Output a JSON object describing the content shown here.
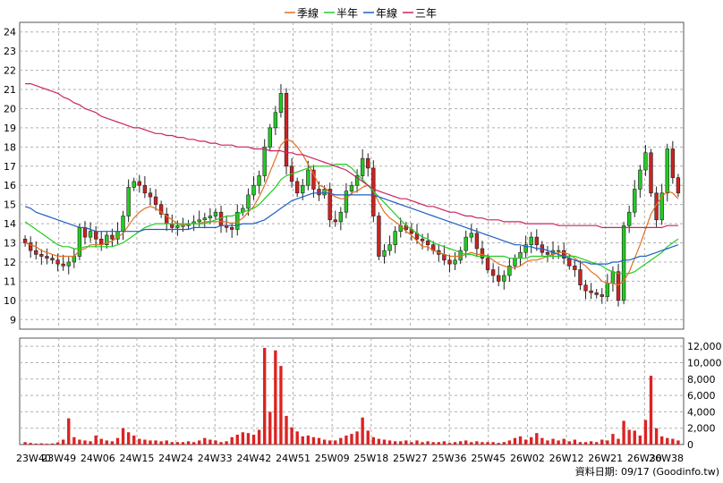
{
  "legend": [
    {
      "label": "季線",
      "color": "#e07020"
    },
    {
      "label": "半年",
      "color": "#22cc22"
    },
    {
      "label": "年線",
      "color": "#1f5fc8"
    },
    {
      "label": "三年",
      "color": "#cc2266"
    }
  ],
  "source_note": "資料日期: 09/17  (Goodinfo.tw)",
  "chart_data": {
    "type": "candlestick",
    "title": "",
    "x_ticks": [
      "23W40",
      "23W49",
      "24W06",
      "24W15",
      "24W24",
      "24W33",
      "24W42",
      "24W51",
      "25W09",
      "25W18",
      "25W27",
      "25W36",
      "25W45",
      "26W02",
      "26W12",
      "26W21",
      "26W30",
      "26W38"
    ],
    "price_axis": {
      "ylim": [
        8.5,
        24.5
      ],
      "ticks": [
        9,
        10,
        11,
        12,
        13,
        14,
        15,
        16,
        17,
        18,
        19,
        20,
        21,
        22,
        23,
        24
      ]
    },
    "volume_axis": {
      "ylim": [
        0,
        13000
      ],
      "ticks": [
        0,
        2000,
        4000,
        6000,
        8000,
        10000,
        12000
      ],
      "tick_labels": [
        "0",
        "2,000",
        "4,000",
        "6,000",
        "8,000",
        "10,000",
        "12,000"
      ]
    },
    "grid": true,
    "legend_position": "top-center",
    "up_color": "#22cc22",
    "down_color": "#cc2222",
    "close": [
      13.0,
      12.6,
      12.4,
      12.3,
      12.2,
      12.1,
      11.9,
      11.8,
      12.0,
      12.3,
      13.8,
      13.3,
      13.6,
      13.2,
      12.9,
      13.4,
      13.2,
      13.6,
      14.4,
      15.9,
      16.2,
      16.0,
      15.6,
      15.4,
      15.0,
      14.5,
      14.0,
      13.8,
      13.9,
      13.9,
      14.0,
      14.1,
      14.2,
      14.3,
      14.4,
      14.6,
      13.9,
      13.8,
      13.7,
      14.6,
      14.8,
      15.5,
      16.0,
      16.5,
      18.0,
      19.0,
      19.8,
      20.8,
      17.0,
      16.2,
      15.6,
      16.0,
      16.8,
      15.8,
      15.5,
      15.8,
      14.2,
      14.1,
      14.6,
      15.7,
      16.0,
      16.5,
      17.4,
      16.9,
      14.4,
      12.3,
      12.6,
      12.9,
      13.6,
      13.9,
      13.7,
      13.5,
      13.2,
      13.1,
      12.9,
      12.6,
      12.4,
      12.1,
      11.9,
      12.1,
      12.6,
      13.3,
      13.5,
      12.7,
      12.2,
      11.6,
      11.3,
      11.0,
      11.3,
      11.8,
      12.2,
      12.5,
      12.9,
      13.3,
      12.9,
      12.5,
      12.4,
      12.6,
      12.6,
      12.2,
      11.8,
      11.6,
      10.8,
      10.5,
      10.4,
      10.3,
      10.2,
      10.9,
      11.5,
      10.0,
      13.9,
      14.6,
      15.8,
      16.8,
      17.7,
      15.6,
      14.2,
      15.6,
      17.9,
      16.4,
      15.6
    ],
    "volume": [
      300,
      200,
      120,
      150,
      100,
      130,
      250,
      600,
      3200,
      900,
      600,
      500,
      400,
      1100,
      700,
      500,
      400,
      800,
      2000,
      1500,
      1100,
      700,
      600,
      500,
      500,
      400,
      500,
      300,
      300,
      300,
      400,
      300,
      500,
      800,
      600,
      500,
      300,
      400,
      900,
      1200,
      1500,
      1400,
      1200,
      1800,
      11800,
      4000,
      11500,
      9600,
      3500,
      2100,
      1600,
      1000,
      1100,
      900,
      800,
      600,
      500,
      500,
      800,
      1100,
      1300,
      1600,
      3300,
      1700,
      900,
      700,
      600,
      500,
      400,
      400,
      500,
      300,
      500,
      300,
      400,
      300,
      300,
      400,
      200,
      300,
      400,
      500,
      300,
      400,
      300,
      300,
      300,
      200,
      300,
      500,
      800,
      1000,
      600,
      900,
      1400,
      800,
      500,
      700,
      500,
      700,
      400,
      600,
      300,
      300,
      400,
      300,
      600,
      500,
      1300,
      700,
      2900,
      1800,
      1700,
      1100,
      3000,
      8400,
      2000,
      1000,
      800,
      700,
      500
    ],
    "series": [
      {
        "name": "季線",
        "values": [
          13.0,
          12.9,
          12.8,
          12.6,
          12.5,
          12.4,
          12.3,
          12.3,
          12.3,
          12.3,
          12.6,
          12.7,
          12.9,
          12.9,
          12.9,
          13.0,
          13.1,
          13.3,
          13.5,
          13.9,
          14.3,
          14.6,
          14.8,
          14.9,
          14.8,
          14.6,
          14.4,
          14.2,
          14.0,
          13.9,
          14.0,
          14.0,
          14.0,
          14.1,
          14.1,
          14.1,
          14.1,
          14.1,
          14.0,
          14.1,
          14.3,
          14.6,
          14.9,
          15.4,
          16.0,
          16.7,
          17.4,
          18.1,
          18.4,
          18.3,
          18.0,
          17.6,
          17.1,
          16.6,
          16.0,
          15.9,
          15.6,
          15.4,
          15.3,
          15.3,
          15.6,
          15.7,
          15.9,
          16.0,
          15.7,
          15.1,
          14.6,
          14.3,
          14.1,
          13.9,
          13.6,
          13.4,
          13.1,
          12.8,
          12.8,
          12.6,
          12.5,
          12.4,
          12.3,
          12.3,
          12.3,
          12.4,
          12.5,
          12.4,
          12.4,
          12.3,
          12.1,
          11.9,
          11.8,
          11.7,
          11.7,
          11.8,
          12.0,
          12.1,
          12.1,
          12.2,
          12.3,
          12.4,
          12.5,
          12.5,
          12.4,
          12.2,
          12.0,
          11.8,
          11.5,
          11.3,
          11.0,
          10.9,
          10.9,
          10.8,
          11.0,
          11.5,
          12.2,
          12.9,
          13.7,
          14.5,
          15.0,
          15.4,
          15.7,
          15.6,
          15.3
        ]
      },
      {
        "name": "半年",
        "values": [
          14.1,
          13.9,
          13.7,
          13.5,
          13.3,
          13.1,
          12.9,
          12.8,
          12.8,
          12.7,
          12.7,
          12.8,
          12.8,
          12.8,
          12.8,
          12.8,
          12.8,
          12.9,
          13.0,
          13.2,
          13.4,
          13.6,
          13.8,
          13.9,
          14.0,
          14.0,
          14.0,
          14.0,
          14.0,
          14.0,
          14.0,
          14.0,
          14.0,
          14.0,
          14.1,
          14.2,
          14.3,
          14.4,
          14.4,
          14.5,
          14.6,
          14.7,
          14.8,
          15.0,
          15.3,
          15.6,
          15.9,
          16.3,
          16.5,
          16.6,
          16.7,
          16.8,
          16.9,
          17.0,
          17.0,
          17.0,
          17.0,
          17.1,
          17.1,
          17.1,
          16.9,
          16.6,
          16.3,
          16.0,
          15.7,
          15.4,
          15.1,
          14.8,
          14.5,
          14.2,
          13.9,
          13.7,
          13.5,
          13.3,
          13.2,
          13.0,
          12.9,
          12.8,
          12.7,
          12.6,
          12.5,
          12.4,
          12.4,
          12.3,
          12.3,
          12.3,
          12.3,
          12.3,
          12.3,
          12.2,
          12.2,
          12.2,
          12.2,
          12.3,
          12.3,
          12.3,
          12.3,
          12.3,
          12.3,
          12.3,
          12.3,
          12.3,
          12.2,
          12.1,
          12.0,
          11.9,
          11.8,
          11.6,
          11.5,
          11.4,
          11.4,
          11.4,
          11.5,
          11.7,
          11.9,
          12.1,
          12.3,
          12.5,
          12.8,
          13.0,
          13.2
        ]
      },
      {
        "name": "年線",
        "values": [
          14.9,
          14.8,
          14.6,
          14.5,
          14.4,
          14.3,
          14.2,
          14.1,
          14.0,
          13.9,
          13.8,
          13.8,
          13.7,
          13.6,
          13.6,
          13.6,
          13.6,
          13.6,
          13.6,
          13.6,
          13.6,
          13.6,
          13.7,
          13.7,
          13.7,
          13.7,
          13.7,
          13.7,
          13.7,
          13.7,
          13.7,
          13.8,
          13.8,
          13.8,
          13.8,
          13.8,
          13.9,
          13.9,
          13.9,
          13.9,
          14.0,
          14.0,
          14.0,
          14.1,
          14.2,
          14.4,
          14.6,
          14.8,
          15.0,
          15.2,
          15.3,
          15.4,
          15.5,
          15.6,
          15.6,
          15.6,
          15.6,
          15.5,
          15.5,
          15.5,
          15.5,
          15.5,
          15.5,
          15.5,
          15.5,
          15.4,
          15.3,
          15.2,
          15.1,
          15.0,
          14.9,
          14.8,
          14.7,
          14.6,
          14.5,
          14.4,
          14.3,
          14.2,
          14.1,
          14.0,
          13.9,
          13.8,
          13.7,
          13.6,
          13.5,
          13.4,
          13.3,
          13.2,
          13.1,
          13.0,
          12.9,
          12.9,
          12.8,
          12.8,
          12.7,
          12.7,
          12.6,
          12.5,
          12.4,
          12.3,
          12.2,
          12.1,
          12.0,
          12.0,
          11.9,
          11.9,
          11.9,
          11.9,
          12.0,
          12.0,
          12.1,
          12.1,
          12.2,
          12.3,
          12.3,
          12.4,
          12.5,
          12.6,
          12.7,
          12.8,
          12.9
        ]
      },
      {
        "name": "三年",
        "values": [
          21.3,
          21.3,
          21.2,
          21.1,
          21.0,
          20.9,
          20.8,
          20.6,
          20.5,
          20.3,
          20.2,
          20.0,
          19.9,
          19.8,
          19.6,
          19.5,
          19.4,
          19.3,
          19.2,
          19.1,
          19.0,
          19.0,
          18.9,
          18.8,
          18.7,
          18.7,
          18.6,
          18.6,
          18.5,
          18.5,
          18.4,
          18.4,
          18.3,
          18.3,
          18.2,
          18.2,
          18.1,
          18.1,
          18.1,
          18.0,
          18.0,
          18.0,
          17.9,
          17.9,
          17.9,
          17.8,
          17.8,
          17.8,
          17.7,
          17.7,
          17.6,
          17.6,
          17.5,
          17.4,
          17.3,
          17.2,
          17.1,
          17.0,
          16.9,
          16.8,
          16.6,
          16.4,
          16.2,
          16.0,
          15.8,
          15.7,
          15.6,
          15.5,
          15.4,
          15.3,
          15.3,
          15.2,
          15.1,
          15.0,
          14.9,
          14.9,
          14.8,
          14.7,
          14.6,
          14.6,
          14.5,
          14.4,
          14.4,
          14.3,
          14.3,
          14.2,
          14.2,
          14.2,
          14.1,
          14.1,
          14.1,
          14.1,
          14.0,
          14.0,
          14.0,
          14.0,
          14.0,
          14.0,
          13.9,
          13.9,
          13.9,
          13.9,
          13.9,
          13.9,
          13.9,
          13.9,
          13.8,
          13.8,
          13.8,
          13.8,
          13.8,
          13.8,
          13.8,
          13.8,
          13.8,
          13.8,
          13.8,
          13.8,
          13.9,
          13.9,
          13.9
        ]
      }
    ]
  }
}
